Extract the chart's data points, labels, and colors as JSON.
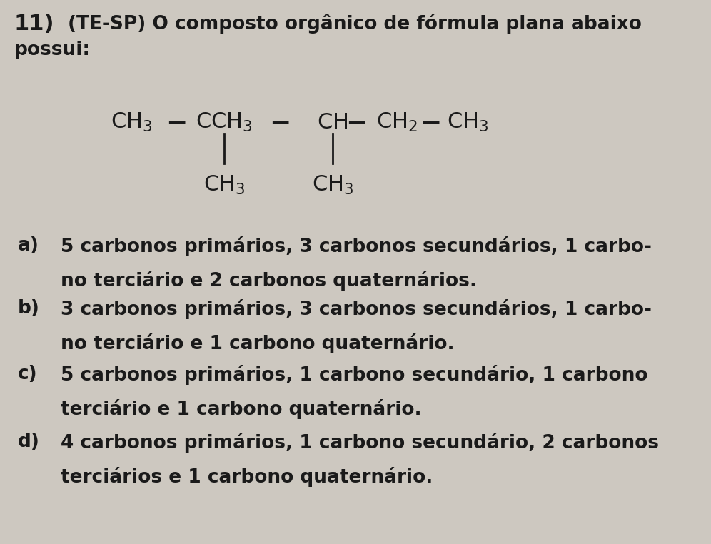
{
  "background_color": "#cdc8c0",
  "text_color": "#1a1a1a",
  "title_number": "11)",
  "title_line1": "(TE-SP) O composto orgânico de fórmula plana abaixo",
  "title_line2": "possui:",
  "options": [
    {
      "label": "a)",
      "text1": "5 carbonos primários, 3 carbonos secundários, 1 carbo-",
      "text2": "no terciário e 2 carbonos quaternários."
    },
    {
      "label": "b)",
      "text1": "3 carbonos primários, 3 carbonos secundários, 1 carbo-",
      "text2": "no terciário e 1 carbono quaternário."
    },
    {
      "label": "c)",
      "text1": "5 carbonos primários, 1 carbono secundário, 1 carbono",
      "text2": "terciário e 1 carbono quaternário."
    },
    {
      "label": "d)",
      "text1": "4 carbonos primários, 1 carbono secundário, 2 carbonos",
      "text2": "terciários e 1 carbono quaternário."
    }
  ],
  "font_size_title": 19,
  "font_size_options": 19,
  "font_size_formula": 22,
  "font_size_formula_sub": 16
}
